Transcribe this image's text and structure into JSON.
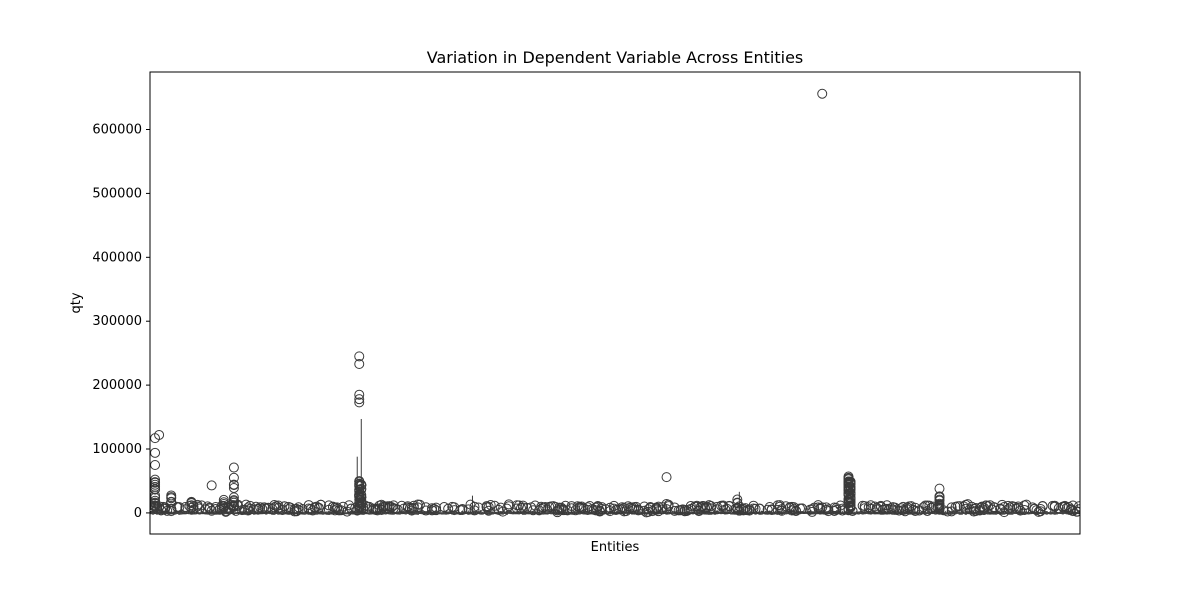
{
  "chart_data": {
    "type": "box",
    "title": "Variation in Dependent Variable Across Entities",
    "xlabel": "Entities",
    "ylabel": "qty",
    "ylim": [
      -33000,
      690000
    ],
    "yticks": [
      0,
      100000,
      200000,
      300000,
      400000,
      500000,
      600000
    ],
    "ytick_labels": [
      "0",
      "100000",
      "200000",
      "300000",
      "400000",
      "500000",
      "600000"
    ],
    "entity_count": 460,
    "grid": false,
    "legend": "none",
    "box_color": "#3a3a3a",
    "notable_outliers": [
      {
        "entity_index": 332,
        "value": 656000
      },
      {
        "entity_index": 103,
        "value": 245000
      },
      {
        "entity_index": 103,
        "value": 233000
      },
      {
        "entity_index": 103,
        "value": 185000
      },
      {
        "entity_index": 103,
        "value": 178000
      },
      {
        "entity_index": 103,
        "value": 173000
      },
      {
        "entity_index": 4,
        "value": 122000
      },
      {
        "entity_index": 2,
        "value": 117000
      },
      {
        "entity_index": 2,
        "value": 94000
      },
      {
        "entity_index": 2,
        "value": 75000
      },
      {
        "entity_index": 41,
        "value": 71000
      },
      {
        "entity_index": 255,
        "value": 56000
      },
      {
        "entity_index": 345,
        "value": 57000
      },
      {
        "entity_index": 41,
        "value": 55000
      },
      {
        "entity_index": 2,
        "value": 52000
      },
      {
        "entity_index": 30,
        "value": 43000
      },
      {
        "entity_index": 390,
        "value": 38000
      }
    ],
    "tall_whiskers": [
      {
        "entity_index": 104,
        "value": 147000
      },
      {
        "entity_index": 102,
        "value": 88000
      },
      {
        "entity_index": 159,
        "value": 27000
      },
      {
        "entity_index": 291,
        "value": 33000
      }
    ]
  }
}
